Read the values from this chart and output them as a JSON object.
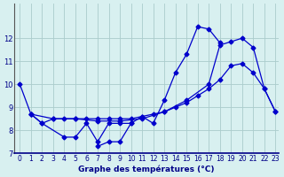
{
  "title": "Graphe des températures (°C)",
  "background_color": "#d8f0f0",
  "line_color": "#0000cc",
  "grid_color": "#aacccc",
  "ylim": [
    7,
    13
  ],
  "xlim": [
    -0.5,
    23.3
  ],
  "yticks": [
    7,
    8,
    9,
    10,
    11,
    12
  ],
  "xticks": [
    0,
    1,
    2,
    3,
    4,
    5,
    6,
    7,
    8,
    9,
    10,
    11,
    12,
    13,
    14,
    15,
    16,
    17,
    18,
    19,
    20,
    21,
    22,
    23
  ],
  "series": [
    {
      "x": [
        0,
        1,
        2,
        4,
        5,
        6,
        7,
        8,
        9,
        10,
        11,
        12,
        13,
        14,
        15,
        16,
        17,
        18
      ],
      "y": [
        10.0,
        8.7,
        8.3,
        7.7,
        7.7,
        8.3,
        7.5,
        8.3,
        8.3,
        8.3,
        8.6,
        8.3,
        9.3,
        10.5,
        11.3,
        12.5,
        12.4,
        11.8
      ]
    },
    {
      "x": [
        7,
        8,
        9,
        10
      ],
      "y": [
        7.3,
        7.5,
        7.5,
        8.3
      ]
    },
    {
      "x": [
        1,
        2,
        3,
        4,
        5,
        6,
        7,
        8,
        9,
        10,
        11,
        12,
        13,
        14,
        15,
        16,
        17,
        18,
        19,
        20,
        21,
        22,
        23
      ],
      "y": [
        8.7,
        8.3,
        8.5,
        8.5,
        8.5,
        8.5,
        8.5,
        8.5,
        8.5,
        8.5,
        8.6,
        8.7,
        8.8,
        9.0,
        9.2,
        9.5,
        9.8,
        10.2,
        10.8,
        10.9,
        10.5,
        9.8,
        8.8
      ]
    },
    {
      "x": [
        1,
        3,
        5,
        7,
        9,
        11,
        13,
        15,
        17,
        18,
        19,
        20,
        21,
        22,
        23
      ],
      "y": [
        8.7,
        8.5,
        8.5,
        8.4,
        8.4,
        8.5,
        8.8,
        9.3,
        10.0,
        11.7,
        11.85,
        12.0,
        11.6,
        9.8,
        8.8
      ]
    }
  ]
}
